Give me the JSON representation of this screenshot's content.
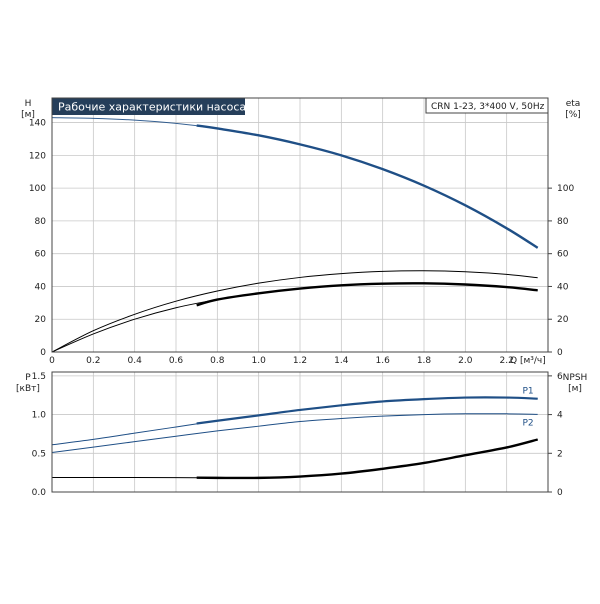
{
  "colors": {
    "header_bg": "#253e5a",
    "header_text": "#ffffff",
    "head_curve": "#1f4f86",
    "eff_curve": "#000000",
    "power_curve": "#1f4f86",
    "npsh_curve": "#000000",
    "grid": "#c8c8c8"
  },
  "chart_data": [
    {
      "type": "line",
      "title": "Рабочие характеристики насоса",
      "legend_box": "CRN 1-23, 3*400 V, 50Hz",
      "xlabel": "Q [м³/ч]",
      "ylabel_left": [
        "H",
        "[м]"
      ],
      "ylabel_right": [
        "eta",
        "[%]"
      ],
      "xlim": [
        0,
        2.4
      ],
      "xticks": [
        "0",
        "0.2",
        "0.4",
        "0.6",
        "0.8",
        "1.0",
        "1.2",
        "1.4",
        "1.6",
        "1.8",
        "2.0",
        "2.2"
      ],
      "ylim_left": [
        0,
        155
      ],
      "yticks_left": [
        "0",
        "20",
        "40",
        "60",
        "80",
        "100",
        "120",
        "140"
      ],
      "ylim_right": [
        0,
        155
      ],
      "yticks_right": [
        "0",
        "20",
        "40",
        "60",
        "80",
        "100"
      ],
      "grid": true,
      "series": [
        {
          "axis": "left",
          "style": "head",
          "x": [
            0,
            0.2,
            0.4,
            0.6,
            0.8,
            1.0,
            1.2,
            1.4,
            1.6,
            1.8,
            2.0,
            2.2,
            2.4
          ],
          "values": [
            143,
            142.6,
            141.5,
            139.5,
            136.4,
            132.2,
            126.7,
            120,
            111.6,
            101.5,
            89.5,
            75.5,
            59.6
          ]
        },
        {
          "axis": "right",
          "style": "efficiency_outer",
          "x": [
            0,
            0.2,
            0.4,
            0.6,
            0.8,
            1.0,
            1.2,
            1.4,
            1.6,
            1.8,
            2.0,
            2.2,
            2.4
          ],
          "values": [
            0,
            13,
            23,
            31,
            37.2,
            42,
            45.5,
            47.8,
            49.2,
            49.6,
            49,
            47.4,
            44.6
          ]
        },
        {
          "axis": "right",
          "style": "efficiency_inner",
          "x": [
            0,
            0.2,
            0.4,
            0.6,
            0.8,
            1.0,
            1.2,
            1.4,
            1.6,
            1.8,
            2.0,
            2.2,
            2.4
          ],
          "values": [
            0,
            11,
            20,
            27,
            32,
            35.8,
            38.7,
            40.7,
            41.7,
            41.9,
            41.2,
            39.6,
            37
          ]
        }
      ]
    },
    {
      "type": "line",
      "xlim": [
        0,
        2.4
      ],
      "ylabel_left": [
        "P",
        "[кВт]"
      ],
      "ylabel_right": [
        "NPSH",
        "[м]"
      ],
      "ylim_left": [
        0,
        1.55
      ],
      "yticks_left": [
        "0.0",
        "0.5",
        "1.0",
        "1.5"
      ],
      "ylim_right": [
        0,
        6.2
      ],
      "yticks_right": [
        "0",
        "2",
        "4",
        "6"
      ],
      "grid": true,
      "series": [
        {
          "name": "P1",
          "axis": "left",
          "style": "power",
          "x": [
            0,
            0.2,
            0.4,
            0.6,
            0.8,
            1.0,
            1.2,
            1.4,
            1.6,
            1.8,
            2.0,
            2.2,
            2.4
          ],
          "values": [
            0.61,
            0.68,
            0.76,
            0.84,
            0.92,
            0.99,
            1.06,
            1.12,
            1.17,
            1.2,
            1.22,
            1.22,
            1.2
          ]
        },
        {
          "name": "P2",
          "axis": "left",
          "style": "power",
          "x": [
            0,
            0.2,
            0.4,
            0.6,
            0.8,
            1.0,
            1.2,
            1.4,
            1.6,
            1.8,
            2.0,
            2.2,
            2.4
          ],
          "values": [
            0.51,
            0.58,
            0.65,
            0.72,
            0.79,
            0.85,
            0.91,
            0.95,
            0.98,
            1.0,
            1.01,
            1.01,
            1.0
          ]
        },
        {
          "axis": "right",
          "style": "npsh",
          "x": [
            0,
            0.2,
            0.4,
            0.6,
            0.8,
            1.0,
            1.2,
            1.4,
            1.6,
            1.8,
            2.0,
            2.2,
            2.4
          ],
          "values": [
            0.75,
            0.75,
            0.75,
            0.74,
            0.73,
            0.73,
            0.8,
            0.95,
            1.2,
            1.5,
            1.9,
            2.3,
            2.85
          ]
        }
      ]
    }
  ]
}
